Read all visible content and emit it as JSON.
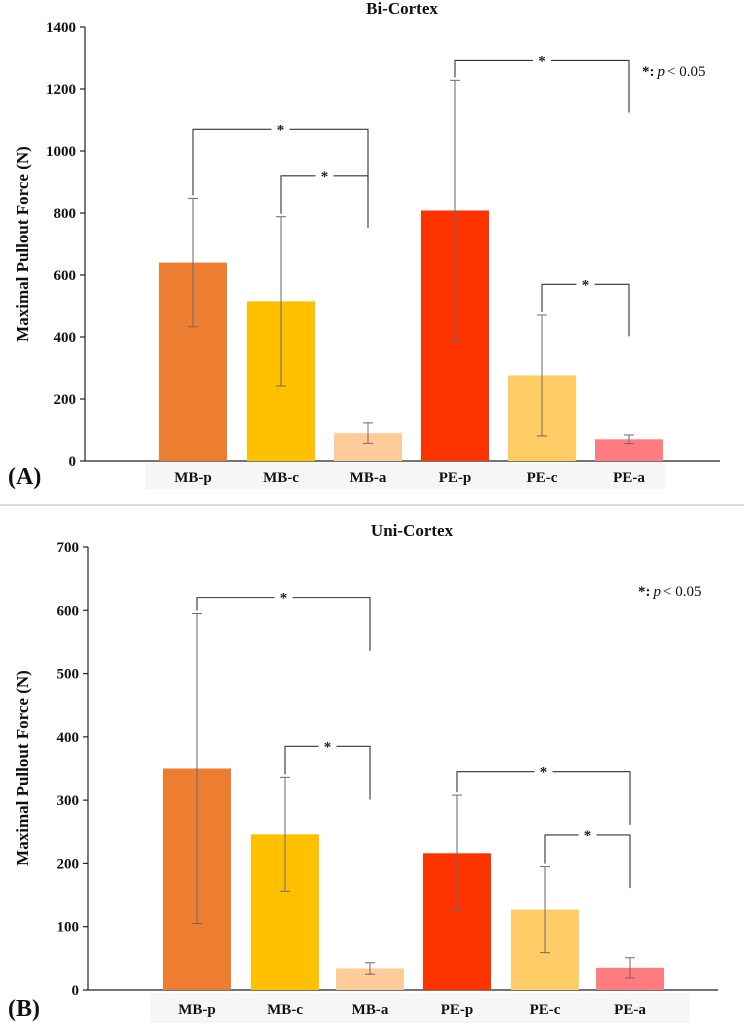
{
  "legend": {
    "star": "*:",
    "p": "p",
    "rest": "< 0.05"
  },
  "colors": {
    "MB-p": "#ed7d31",
    "MB-c": "#ffc000",
    "MB-a": "#ffcc99",
    "PE-p": "#ff3300",
    "PE-c": "#ffcc66",
    "PE-a": "#ff7c80"
  },
  "chart_data": [
    {
      "type": "bar",
      "panel": "(A)",
      "title": "Bi-Cortex",
      "ylabel": "Maximal Pullout Force (N)",
      "xlabel": "",
      "ylim": [
        0,
        1400
      ],
      "yticks": [
        0,
        200,
        400,
        600,
        800,
        1000,
        1200,
        1400
      ],
      "categories": [
        "MB-p",
        "MB-c",
        "MB-a",
        "PE-p",
        "PE-c",
        "PE-a"
      ],
      "values": [
        640,
        515,
        90,
        808,
        276,
        70
      ],
      "errors": [
        207,
        273,
        33,
        420,
        195,
        14
      ],
      "significance": [
        {
          "from": "MB-p",
          "to": "MB-a",
          "label": "*",
          "y": 1070
        },
        {
          "from": "MB-c",
          "to": "MB-a",
          "label": "*",
          "y": 920
        },
        {
          "from": "PE-p",
          "to": "PE-a",
          "label": "*",
          "y": 1292
        },
        {
          "from": "PE-c",
          "to": "PE-a",
          "label": "*",
          "y": 570
        }
      ]
    },
    {
      "type": "bar",
      "panel": "(B)",
      "title": "Uni-Cortex",
      "ylabel": "Maximal Pullout Force (N)",
      "xlabel": "",
      "ylim": [
        0,
        700
      ],
      "yticks": [
        0,
        100,
        200,
        300,
        400,
        500,
        600,
        700
      ],
      "categories": [
        "MB-p",
        "MB-c",
        "MB-a",
        "PE-p",
        "PE-c",
        "PE-a"
      ],
      "values": [
        350,
        246,
        34,
        216,
        127,
        35
      ],
      "errors": [
        245,
        90,
        9,
        92,
        68,
        16
      ],
      "significance": [
        {
          "from": "MB-p",
          "to": "MB-a",
          "label": "*",
          "y": 620
        },
        {
          "from": "MB-c",
          "to": "MB-a",
          "label": "*",
          "y": 385
        },
        {
          "from": "PE-p",
          "to": "PE-a",
          "label": "*",
          "y": 345
        },
        {
          "from": "PE-c",
          "to": "PE-a",
          "label": "*",
          "y": 245
        }
      ]
    }
  ]
}
